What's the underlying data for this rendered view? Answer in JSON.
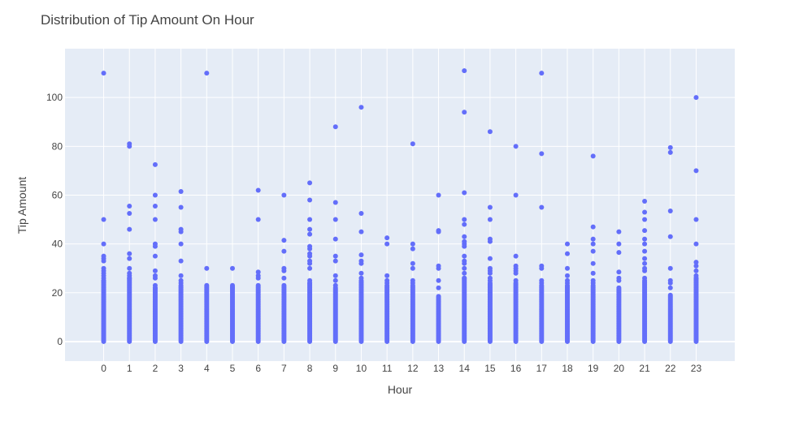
{
  "chart_data": {
    "type": "scatter",
    "title": "Distribution of Tip Amount On Hour",
    "xlabel": "Hour",
    "ylabel": "Tip Amount",
    "x_ticks": [
      0,
      1,
      2,
      3,
      4,
      5,
      6,
      7,
      8,
      9,
      10,
      11,
      12,
      13,
      14,
      15,
      16,
      17,
      18,
      19,
      20,
      21,
      22,
      23
    ],
    "y_ticks": [
      0,
      20,
      40,
      60,
      80,
      100
    ],
    "xlim": [
      -1.5,
      24.5
    ],
    "ylim": [
      -8,
      120
    ],
    "grid": true,
    "colors": {
      "marker": "#636efa",
      "plot_background": "#e5ecf6",
      "grid": "#ffffff"
    },
    "series": [
      {
        "points": [
          [
            0,
            110
          ],
          [
            0,
            50
          ],
          [
            0,
            40
          ],
          [
            0,
            35
          ],
          [
            0,
            34
          ],
          [
            0,
            33
          ],
          [
            0,
            30
          ],
          [
            0,
            29
          ],
          [
            0,
            28
          ],
          [
            0,
            27
          ],
          [
            0,
            26
          ],
          [
            0,
            25
          ],
          [
            1,
            81
          ],
          [
            1,
            80
          ],
          [
            1,
            55.5
          ],
          [
            1,
            52.5
          ],
          [
            1,
            46
          ],
          [
            1,
            36
          ],
          [
            1,
            34
          ],
          [
            1,
            30
          ],
          [
            1,
            28
          ],
          [
            1,
            27
          ],
          [
            1,
            26
          ],
          [
            2,
            72.5
          ],
          [
            2,
            60
          ],
          [
            2,
            55.5
          ],
          [
            2,
            50
          ],
          [
            2,
            40
          ],
          [
            2,
            39
          ],
          [
            2,
            35
          ],
          [
            2,
            29
          ],
          [
            2,
            27
          ],
          [
            2,
            26
          ],
          [
            2,
            23
          ],
          [
            2,
            22
          ],
          [
            3,
            61.5
          ],
          [
            3,
            55
          ],
          [
            3,
            46
          ],
          [
            3,
            45
          ],
          [
            3,
            40
          ],
          [
            3,
            33
          ],
          [
            3,
            27
          ],
          [
            3,
            25
          ],
          [
            3,
            24
          ],
          [
            4,
            110
          ],
          [
            4,
            30
          ],
          [
            4,
            23
          ],
          [
            5,
            30
          ],
          [
            5,
            23
          ],
          [
            5,
            22
          ],
          [
            6,
            62
          ],
          [
            6,
            50
          ],
          [
            6,
            28.5
          ],
          [
            6,
            27
          ],
          [
            6,
            26
          ],
          [
            6,
            23
          ],
          [
            7,
            60
          ],
          [
            7,
            41.5
          ],
          [
            7,
            37
          ],
          [
            7,
            30
          ],
          [
            7,
            29
          ],
          [
            7,
            26
          ],
          [
            7,
            23
          ],
          [
            8,
            65
          ],
          [
            8,
            58
          ],
          [
            8,
            50
          ],
          [
            8,
            46
          ],
          [
            8,
            44
          ],
          [
            8,
            39
          ],
          [
            8,
            38
          ],
          [
            8,
            36
          ],
          [
            8,
            35
          ],
          [
            8,
            33
          ],
          [
            8,
            32
          ],
          [
            8,
            30
          ],
          [
            8,
            25
          ],
          [
            8,
            24
          ],
          [
            9,
            88
          ],
          [
            9,
            57
          ],
          [
            9,
            50
          ],
          [
            9,
            42
          ],
          [
            9,
            35
          ],
          [
            9,
            33
          ],
          [
            9,
            27
          ],
          [
            9,
            25
          ],
          [
            9,
            23
          ],
          [
            10,
            96
          ],
          [
            10,
            52.5
          ],
          [
            10,
            45
          ],
          [
            10,
            35.5
          ],
          [
            10,
            33
          ],
          [
            10,
            32
          ],
          [
            10,
            28
          ],
          [
            10,
            26
          ],
          [
            11,
            42.5
          ],
          [
            11,
            40
          ],
          [
            11,
            27
          ],
          [
            11,
            25
          ],
          [
            11,
            24
          ],
          [
            12,
            81
          ],
          [
            12,
            40
          ],
          [
            12,
            38
          ],
          [
            12,
            32
          ],
          [
            12,
            30
          ],
          [
            12,
            25
          ],
          [
            12,
            24
          ],
          [
            13,
            60
          ],
          [
            13,
            45.5
          ],
          [
            13,
            45
          ],
          [
            13,
            31
          ],
          [
            13,
            30
          ],
          [
            13,
            25
          ],
          [
            13,
            22
          ],
          [
            14,
            111
          ],
          [
            14,
            94
          ],
          [
            14,
            61
          ],
          [
            14,
            50
          ],
          [
            14,
            48
          ],
          [
            14,
            43
          ],
          [
            14,
            41
          ],
          [
            14,
            40
          ],
          [
            14,
            39
          ],
          [
            14,
            35
          ],
          [
            14,
            33
          ],
          [
            14,
            32
          ],
          [
            14,
            30
          ],
          [
            14,
            28
          ],
          [
            14,
            26
          ],
          [
            15,
            86
          ],
          [
            15,
            55
          ],
          [
            15,
            50
          ],
          [
            15,
            42
          ],
          [
            15,
            41
          ],
          [
            15,
            34
          ],
          [
            15,
            30
          ],
          [
            15,
            29
          ],
          [
            15,
            28
          ],
          [
            15,
            26
          ],
          [
            15,
            25
          ],
          [
            16,
            80
          ],
          [
            16,
            60
          ],
          [
            16,
            35
          ],
          [
            16,
            31
          ],
          [
            16,
            30
          ],
          [
            16,
            29
          ],
          [
            16,
            28
          ],
          [
            16,
            25
          ],
          [
            17,
            110
          ],
          [
            17,
            77
          ],
          [
            17,
            55
          ],
          [
            17,
            31
          ],
          [
            17,
            30
          ],
          [
            17,
            25
          ],
          [
            17,
            24
          ],
          [
            18,
            40
          ],
          [
            18,
            36
          ],
          [
            18,
            30
          ],
          [
            18,
            27
          ],
          [
            18,
            25
          ],
          [
            18,
            24
          ],
          [
            19,
            76
          ],
          [
            19,
            47
          ],
          [
            19,
            42
          ],
          [
            19,
            40
          ],
          [
            19,
            37
          ],
          [
            19,
            32
          ],
          [
            19,
            28
          ],
          [
            19,
            25
          ],
          [
            19,
            24
          ],
          [
            20,
            45
          ],
          [
            20,
            40
          ],
          [
            20,
            36.5
          ],
          [
            20,
            28.5
          ],
          [
            20,
            26
          ],
          [
            20,
            25
          ],
          [
            21,
            57.5
          ],
          [
            21,
            53
          ],
          [
            21,
            50
          ],
          [
            21,
            45.5
          ],
          [
            21,
            42
          ],
          [
            21,
            40
          ],
          [
            21,
            37
          ],
          [
            21,
            34
          ],
          [
            21,
            32
          ],
          [
            21,
            30
          ],
          [
            21,
            29
          ],
          [
            21,
            26
          ],
          [
            22,
            79.5
          ],
          [
            22,
            77.5
          ],
          [
            22,
            53.5
          ],
          [
            22,
            43
          ],
          [
            22,
            30
          ],
          [
            22,
            25
          ],
          [
            22,
            24
          ],
          [
            22,
            22
          ],
          [
            23,
            100
          ],
          [
            23,
            70
          ],
          [
            23,
            50
          ],
          [
            23,
            40
          ],
          [
            23,
            32.5
          ],
          [
            23,
            31
          ],
          [
            23,
            29
          ],
          [
            23,
            27
          ],
          [
            23,
            26
          ]
        ],
        "dense_range": [
          [
            0,
            0,
            25
          ],
          [
            1,
            0,
            26
          ],
          [
            2,
            0,
            22
          ],
          [
            3,
            0,
            23
          ],
          [
            4,
            0,
            22.5
          ],
          [
            5,
            0,
            22.5
          ],
          [
            6,
            0,
            22.5
          ],
          [
            7,
            0,
            22.5
          ],
          [
            8,
            0,
            24
          ],
          [
            9,
            0,
            22
          ],
          [
            10,
            0,
            25
          ],
          [
            11,
            0,
            23
          ],
          [
            12,
            0,
            23
          ],
          [
            13,
            0,
            18.5
          ],
          [
            14,
            0,
            26
          ],
          [
            15,
            0,
            24
          ],
          [
            16,
            0,
            24
          ],
          [
            17,
            0,
            23
          ],
          [
            18,
            0,
            23
          ],
          [
            19,
            0,
            23
          ],
          [
            20,
            0,
            22
          ],
          [
            21,
            0,
            25
          ],
          [
            22,
            0,
            19
          ],
          [
            23,
            0,
            26
          ]
        ]
      }
    ]
  }
}
